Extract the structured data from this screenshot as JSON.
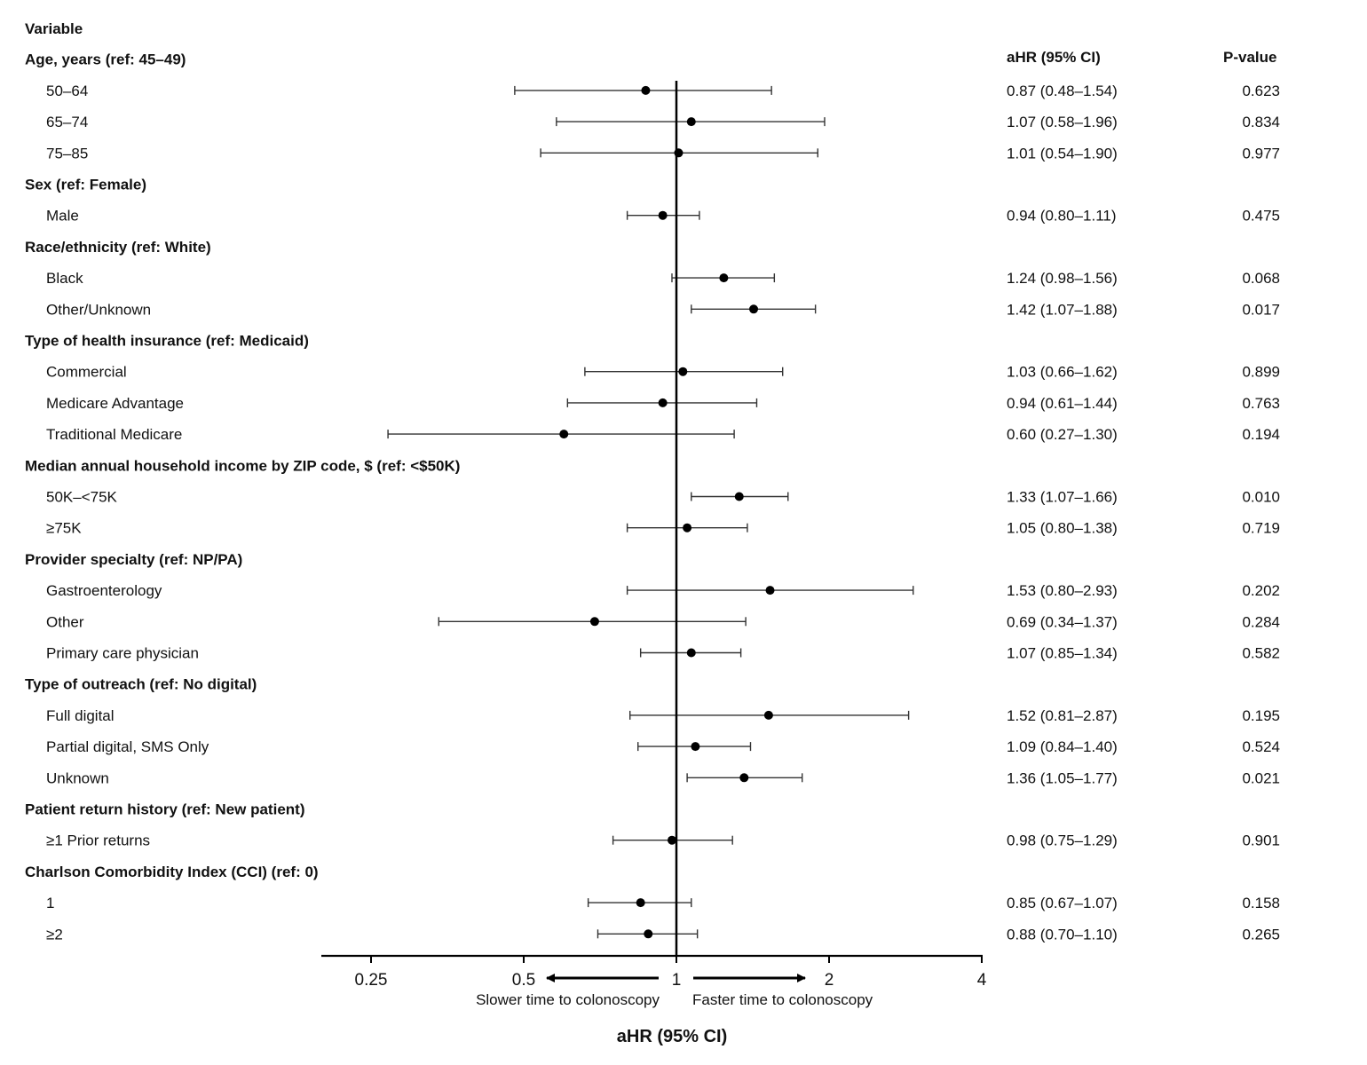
{
  "chart_data": {
    "type": "forest",
    "variable_header": "Variable",
    "estimate_header": "aHR (95% CI)",
    "p_header": "P-value",
    "xlabel": "aHR (95% CI)",
    "x_scale": "log2",
    "xlim": [
      0.19,
      4
    ],
    "ticks": [
      {
        "value": 0.25,
        "label": "0.25"
      },
      {
        "value": 0.5,
        "label": "0.5"
      },
      {
        "value": 1,
        "label": "1"
      },
      {
        "value": 2,
        "label": "2"
      },
      {
        "value": 4,
        "label": "4"
      }
    ],
    "reference_value": 1,
    "direction_left": "Slower time to colonoscopy",
    "direction_right": "Faster time to colonoscopy",
    "rows": [
      {
        "type": "header",
        "label": "Age, years (ref: 45–49)"
      },
      {
        "type": "item",
        "label": "50–64",
        "est": 0.87,
        "lo": 0.48,
        "hi": 1.54,
        "ci_text": "0.87 (0.48–1.54)",
        "p": "0.623"
      },
      {
        "type": "item",
        "label": "65–74",
        "est": 1.07,
        "lo": 0.58,
        "hi": 1.96,
        "ci_text": "1.07 (0.58–1.96)",
        "p": "0.834"
      },
      {
        "type": "item",
        "label": "75–85",
        "est": 1.01,
        "lo": 0.54,
        "hi": 1.9,
        "ci_text": "1.01 (0.54–1.90)",
        "p": "0.977"
      },
      {
        "type": "header",
        "label": "Sex (ref: Female)"
      },
      {
        "type": "item",
        "label": "Male",
        "est": 0.94,
        "lo": 0.8,
        "hi": 1.11,
        "ci_text": "0.94 (0.80–1.11)",
        "p": "0.475"
      },
      {
        "type": "header",
        "label": "Race/ethnicity (ref: White)"
      },
      {
        "type": "item",
        "label": "Black",
        "est": 1.24,
        "lo": 0.98,
        "hi": 1.56,
        "ci_text": "1.24 (0.98–1.56)",
        "p": "0.068"
      },
      {
        "type": "item",
        "label": "Other/Unknown",
        "est": 1.42,
        "lo": 1.07,
        "hi": 1.88,
        "ci_text": "1.42 (1.07–1.88)",
        "p": "0.017"
      },
      {
        "type": "header",
        "label": "Type of health insurance (ref: Medicaid)"
      },
      {
        "type": "item",
        "label": "Commercial",
        "est": 1.03,
        "lo": 0.66,
        "hi": 1.62,
        "ci_text": "1.03 (0.66–1.62)",
        "p": "0.899"
      },
      {
        "type": "item",
        "label": "Medicare Advantage",
        "est": 0.94,
        "lo": 0.61,
        "hi": 1.44,
        "ci_text": "0.94 (0.61–1.44)",
        "p": "0.763"
      },
      {
        "type": "item",
        "label": "Traditional Medicare",
        "est": 0.6,
        "lo": 0.27,
        "hi": 1.3,
        "ci_text": "0.60 (0.27–1.30)",
        "p": "0.194"
      },
      {
        "type": "header",
        "label": "Median annual household income by ZIP code, $ (ref: <$50K)"
      },
      {
        "type": "item",
        "label": "50K–<75K",
        "est": 1.33,
        "lo": 1.07,
        "hi": 1.66,
        "ci_text": "1.33 (1.07–1.66)",
        "p": "0.010"
      },
      {
        "type": "item",
        "label": "≥75K",
        "est": 1.05,
        "lo": 0.8,
        "hi": 1.38,
        "ci_text": "1.05 (0.80–1.38)",
        "p": "0.719"
      },
      {
        "type": "header",
        "label": "Provider specialty (ref: NP/PA)"
      },
      {
        "type": "item",
        "label": "Gastroenterology",
        "est": 1.53,
        "lo": 0.8,
        "hi": 2.93,
        "ci_text": "1.53 (0.80–2.93)",
        "p": "0.202"
      },
      {
        "type": "item",
        "label": "Other",
        "est": 0.69,
        "lo": 0.34,
        "hi": 1.37,
        "ci_text": "0.69 (0.34–1.37)",
        "p": "0.284"
      },
      {
        "type": "item",
        "label": "Primary care physician",
        "est": 1.07,
        "lo": 0.85,
        "hi": 1.34,
        "ci_text": "1.07 (0.85–1.34)",
        "p": "0.582"
      },
      {
        "type": "header",
        "label": "Type of outreach (ref: No digital)"
      },
      {
        "type": "item",
        "label": "Full digital",
        "est": 1.52,
        "lo": 0.81,
        "hi": 2.87,
        "ci_text": "1.52 (0.81–2.87)",
        "p": "0.195"
      },
      {
        "type": "item",
        "label": "Partial digital, SMS Only",
        "est": 1.09,
        "lo": 0.84,
        "hi": 1.4,
        "ci_text": "1.09 (0.84–1.40)",
        "p": "0.524"
      },
      {
        "type": "item",
        "label": "Unknown",
        "est": 1.36,
        "lo": 1.05,
        "hi": 1.77,
        "ci_text": "1.36 (1.05–1.77)",
        "p": "0.021"
      },
      {
        "type": "header",
        "label": "Patient return history (ref: New patient)"
      },
      {
        "type": "item",
        "label": "≥1 Prior returns",
        "est": 0.98,
        "lo": 0.75,
        "hi": 1.29,
        "ci_text": "0.98 (0.75–1.29)",
        "p": "0.901"
      },
      {
        "type": "header",
        "label": "Charlson Comorbidity Index (CCI) (ref: 0)"
      },
      {
        "type": "item",
        "label": "1",
        "est": 0.85,
        "lo": 0.67,
        "hi": 1.07,
        "ci_text": "0.85 (0.67–1.07)",
        "p": "0.158"
      },
      {
        "type": "item",
        "label": "≥2",
        "est": 0.88,
        "lo": 0.7,
        "hi": 1.1,
        "ci_text": "0.88 (0.70–1.10)",
        "p": "0.265"
      }
    ]
  }
}
